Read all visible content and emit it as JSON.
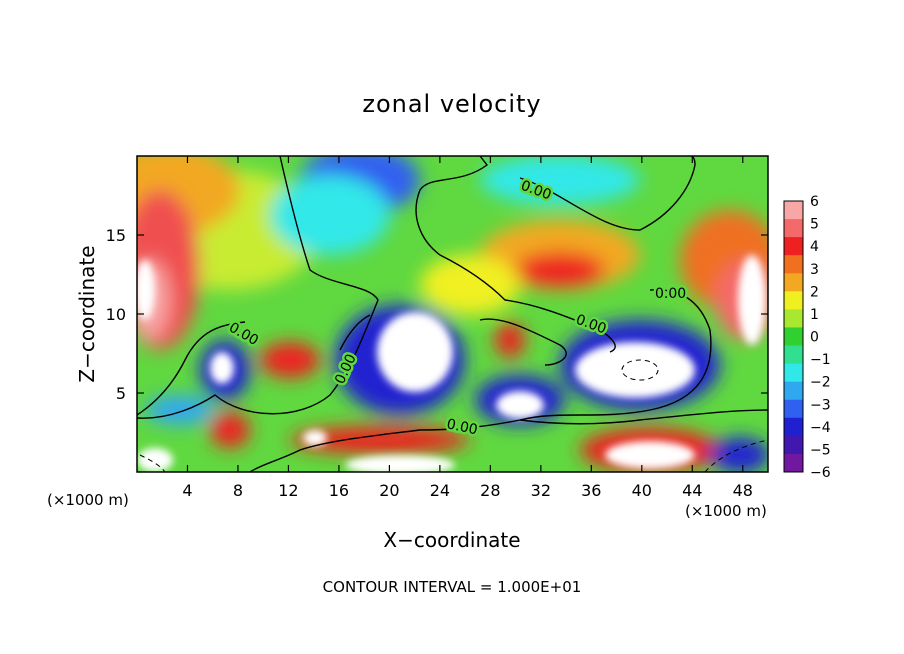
{
  "chart_data": {
    "type": "heatmap",
    "title": "zonal velocity",
    "xlabel": "X−coordinate",
    "ylabel": "Z−coordinate",
    "x_unit_left": "(×1000 m)",
    "x_unit_right": "(×1000 m)",
    "footer": "CONTOUR INTERVAL = 1.000E+01",
    "xlim": [
      0,
      50
    ],
    "ylim": [
      0,
      20
    ],
    "x_ticks": [
      4,
      8,
      12,
      16,
      20,
      24,
      28,
      32,
      36,
      40,
      44,
      48
    ],
    "y_ticks": [
      5,
      10,
      15
    ],
    "colorbar": {
      "ticks": [
        6,
        5,
        4,
        3,
        2,
        1,
        0,
        -1,
        -2,
        -3,
        -4,
        -5,
        -6
      ],
      "tick_labels": [
        "6",
        "5",
        "4",
        "3",
        "2",
        "1",
        "0",
        "−1",
        "−2",
        "−3",
        "−4",
        "−5",
        "−6"
      ],
      "colors": [
        "#f8a6a6",
        "#f46a6a",
        "#ee2020",
        "#f07020",
        "#f2a820",
        "#f0f020",
        "#a8e830",
        "#30d030",
        "#30e090",
        "#30e8e8",
        "#30a8f0",
        "#3060f0",
        "#2020d0",
        "#4018b0",
        "#7018a0"
      ]
    },
    "contour_labels": [
      "0.00",
      "0.00",
      "0.00",
      "0.00",
      "0.00",
      "0.00"
    ]
  }
}
